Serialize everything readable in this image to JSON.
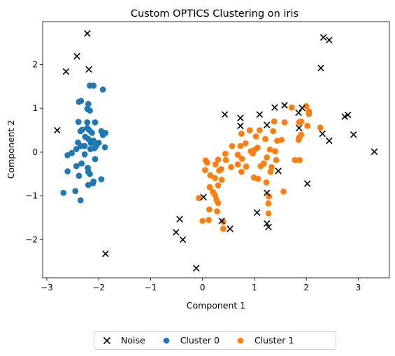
{
  "chart_data": {
    "type": "scatter",
    "title": "Custom OPTICS Clustering on iris",
    "xlabel": "Component 1",
    "ylabel": "Component 2",
    "xlim": [
      -3.08,
      3.6
    ],
    "ylim": [
      -2.87,
      2.98
    ],
    "xticks": [
      -3,
      -2,
      -1,
      0,
      1,
      2,
      3
    ],
    "yticks": [
      -2,
      -1,
      0,
      1,
      2
    ],
    "grid": false,
    "legend_position": "bottom-center",
    "series": [
      {
        "name": "Noise",
        "marker": "x",
        "color": "#000000",
        "points": [
          [
            -2.22,
            2.71
          ],
          [
            -2.42,
            2.19
          ],
          [
            -2.63,
            1.84
          ],
          [
            -2.19,
            1.89
          ],
          [
            -2.8,
            0.5
          ],
          [
            -1.87,
            -2.32
          ],
          [
            -0.44,
            -1.53
          ],
          [
            -0.51,
            -1.83
          ],
          [
            -0.38,
            -2.0
          ],
          [
            -0.12,
            -2.65
          ],
          [
            0.02,
            -1.03
          ],
          [
            0.37,
            -1.57
          ],
          [
            0.53,
            -1.75
          ],
          [
            0.43,
            0.86
          ],
          [
            0.73,
            0.78
          ],
          [
            0.73,
            0.6
          ],
          [
            1.1,
            0.86
          ],
          [
            1.24,
            0.62
          ],
          [
            1.39,
            1.02
          ],
          [
            1.58,
            1.07
          ],
          [
            1.85,
            0.9
          ],
          [
            1.92,
            1.01
          ],
          [
            1.86,
            0.55
          ],
          [
            1.46,
            -0.43
          ],
          [
            1.24,
            -0.93
          ],
          [
            1.24,
            -1.63
          ],
          [
            1.27,
            -1.71
          ],
          [
            1.05,
            -1.38
          ],
          [
            2.02,
            -0.72
          ],
          [
            2.28,
            1.92
          ],
          [
            2.33,
            2.62
          ],
          [
            2.44,
            2.56
          ],
          [
            2.31,
            0.42
          ],
          [
            2.44,
            0.26
          ],
          [
            2.74,
            0.81
          ],
          [
            2.8,
            0.85
          ],
          [
            2.91,
            0.4
          ],
          [
            3.31,
            0.01
          ]
        ]
      },
      {
        "name": "Cluster 0",
        "marker": "o",
        "color": "#1f77b4",
        "points": [
          [
            -2.17,
            1.52
          ],
          [
            -2.1,
            1.52
          ],
          [
            -1.92,
            1.43
          ],
          [
            -2.38,
            1.15
          ],
          [
            -2.34,
            1.17
          ],
          [
            -2.2,
            1.1
          ],
          [
            -2.22,
            0.99
          ],
          [
            -2.17,
            0.95
          ],
          [
            -2.39,
            0.69
          ],
          [
            -2.22,
            0.68
          ],
          [
            -2.07,
            0.68
          ],
          [
            -2.35,
            0.48
          ],
          [
            -2.32,
            0.51
          ],
          [
            -2.22,
            0.55
          ],
          [
            -2.18,
            0.5
          ],
          [
            -2.13,
            0.44
          ],
          [
            -1.95,
            0.48
          ],
          [
            -1.87,
            0.44
          ],
          [
            -1.92,
            0.39
          ],
          [
            -2.26,
            0.35
          ],
          [
            -2.2,
            0.3
          ],
          [
            -2.15,
            0.21
          ],
          [
            -2.1,
            0.26
          ],
          [
            -2.0,
            0.21
          ],
          [
            -1.88,
            0.11
          ],
          [
            -2.27,
            0.14
          ],
          [
            -2.34,
            0.14
          ],
          [
            -2.43,
            0.07
          ],
          [
            -2.16,
            0.07
          ],
          [
            -2.08,
            0.09
          ],
          [
            -2.05,
            0.14
          ],
          [
            -2.4,
            0.22
          ],
          [
            -2.6,
            -0.07
          ],
          [
            -2.52,
            -0.02
          ],
          [
            -2.27,
            -0.05
          ],
          [
            -2.07,
            -0.16
          ],
          [
            -2.33,
            -0.26
          ],
          [
            -2.43,
            -0.32
          ],
          [
            -2.21,
            -0.36
          ],
          [
            -2.6,
            -0.44
          ],
          [
            -2.2,
            -0.45
          ],
          [
            -2.17,
            -0.5
          ],
          [
            -2.38,
            -0.54
          ],
          [
            -2.1,
            -0.67
          ],
          [
            -2.11,
            -0.71
          ],
          [
            -1.95,
            -0.62
          ],
          [
            -2.2,
            -0.75
          ],
          [
            -2.45,
            -0.89
          ],
          [
            -2.68,
            -0.93
          ],
          [
            -2.35,
            -1.1
          ]
        ]
      },
      {
        "name": "Cluster 1",
        "marker": "o",
        "color": "#ff7f0e",
        "points": [
          [
            1.72,
            1.02
          ],
          [
            2.0,
            1.05
          ],
          [
            2.05,
            0.93
          ],
          [
            2.05,
            0.87
          ],
          [
            1.86,
            0.68
          ],
          [
            1.9,
            0.7
          ],
          [
            1.38,
            0.7
          ],
          [
            1.58,
            0.68
          ],
          [
            2.02,
            0.6
          ],
          [
            2.27,
            0.56
          ],
          [
            0.91,
            0.5
          ],
          [
            1.1,
            0.5
          ],
          [
            1.36,
            0.48
          ],
          [
            0.75,
            0.42
          ],
          [
            1.03,
            0.36
          ],
          [
            1.21,
            0.3
          ],
          [
            1.44,
            0.26
          ],
          [
            1.52,
            0.28
          ],
          [
            1.9,
            0.4
          ],
          [
            1.86,
            0.33
          ],
          [
            1.85,
            0.28
          ],
          [
            0.83,
            0.2
          ],
          [
            0.57,
            0.14
          ],
          [
            0.73,
            0.14
          ],
          [
            1.0,
            0.05
          ],
          [
            1.06,
            0.1
          ],
          [
            0.93,
            0.02
          ],
          [
            1.3,
            0.06
          ],
          [
            1.4,
            0.02
          ],
          [
            0.44,
            -0.04
          ],
          [
            0.68,
            -0.06
          ],
          [
            0.97,
            -0.03
          ],
          [
            1.24,
            -0.12
          ],
          [
            0.06,
            -0.19
          ],
          [
            0.09,
            -0.24
          ],
          [
            0.3,
            -0.17
          ],
          [
            0.45,
            -0.18
          ],
          [
            0.76,
            -0.15
          ],
          [
            0.25,
            -0.28
          ],
          [
            0.68,
            -0.28
          ],
          [
            1.42,
            -0.18
          ],
          [
            1.78,
            -0.18
          ],
          [
            1.87,
            -0.18
          ],
          [
            0.36,
            -0.39
          ],
          [
            0.55,
            -0.34
          ],
          [
            1.12,
            -0.32
          ],
          [
            1.18,
            -0.26
          ],
          [
            1.33,
            -0.34
          ],
          [
            0.05,
            -0.41
          ],
          [
            0.32,
            -0.42
          ],
          [
            0.75,
            -0.45
          ],
          [
            0.84,
            -0.33
          ],
          [
            1.31,
            -0.45
          ],
          [
            0.15,
            -0.53
          ],
          [
            0.24,
            -0.59
          ],
          [
            0.37,
            -0.63
          ],
          [
            0.99,
            -0.58
          ],
          [
            1.07,
            -0.61
          ],
          [
            1.23,
            -0.69
          ],
          [
            0.14,
            -0.8
          ],
          [
            0.3,
            -0.76
          ],
          [
            1.56,
            -0.9
          ],
          [
            0.2,
            -0.91
          ],
          [
            0.24,
            -0.98
          ],
          [
            1.28,
            -1.01
          ],
          [
            -0.07,
            -1.05
          ],
          [
            0.27,
            -1.09
          ],
          [
            0.3,
            -1.16
          ],
          [
            1.27,
            -1.17
          ],
          [
            0.13,
            -1.31
          ],
          [
            0.28,
            -1.35
          ],
          [
            1.27,
            -1.4
          ],
          [
            0.0,
            -1.57
          ],
          [
            0.12,
            -1.55
          ],
          [
            0.4,
            -1.59
          ],
          [
            0.4,
            -1.75
          ]
        ]
      }
    ]
  }
}
